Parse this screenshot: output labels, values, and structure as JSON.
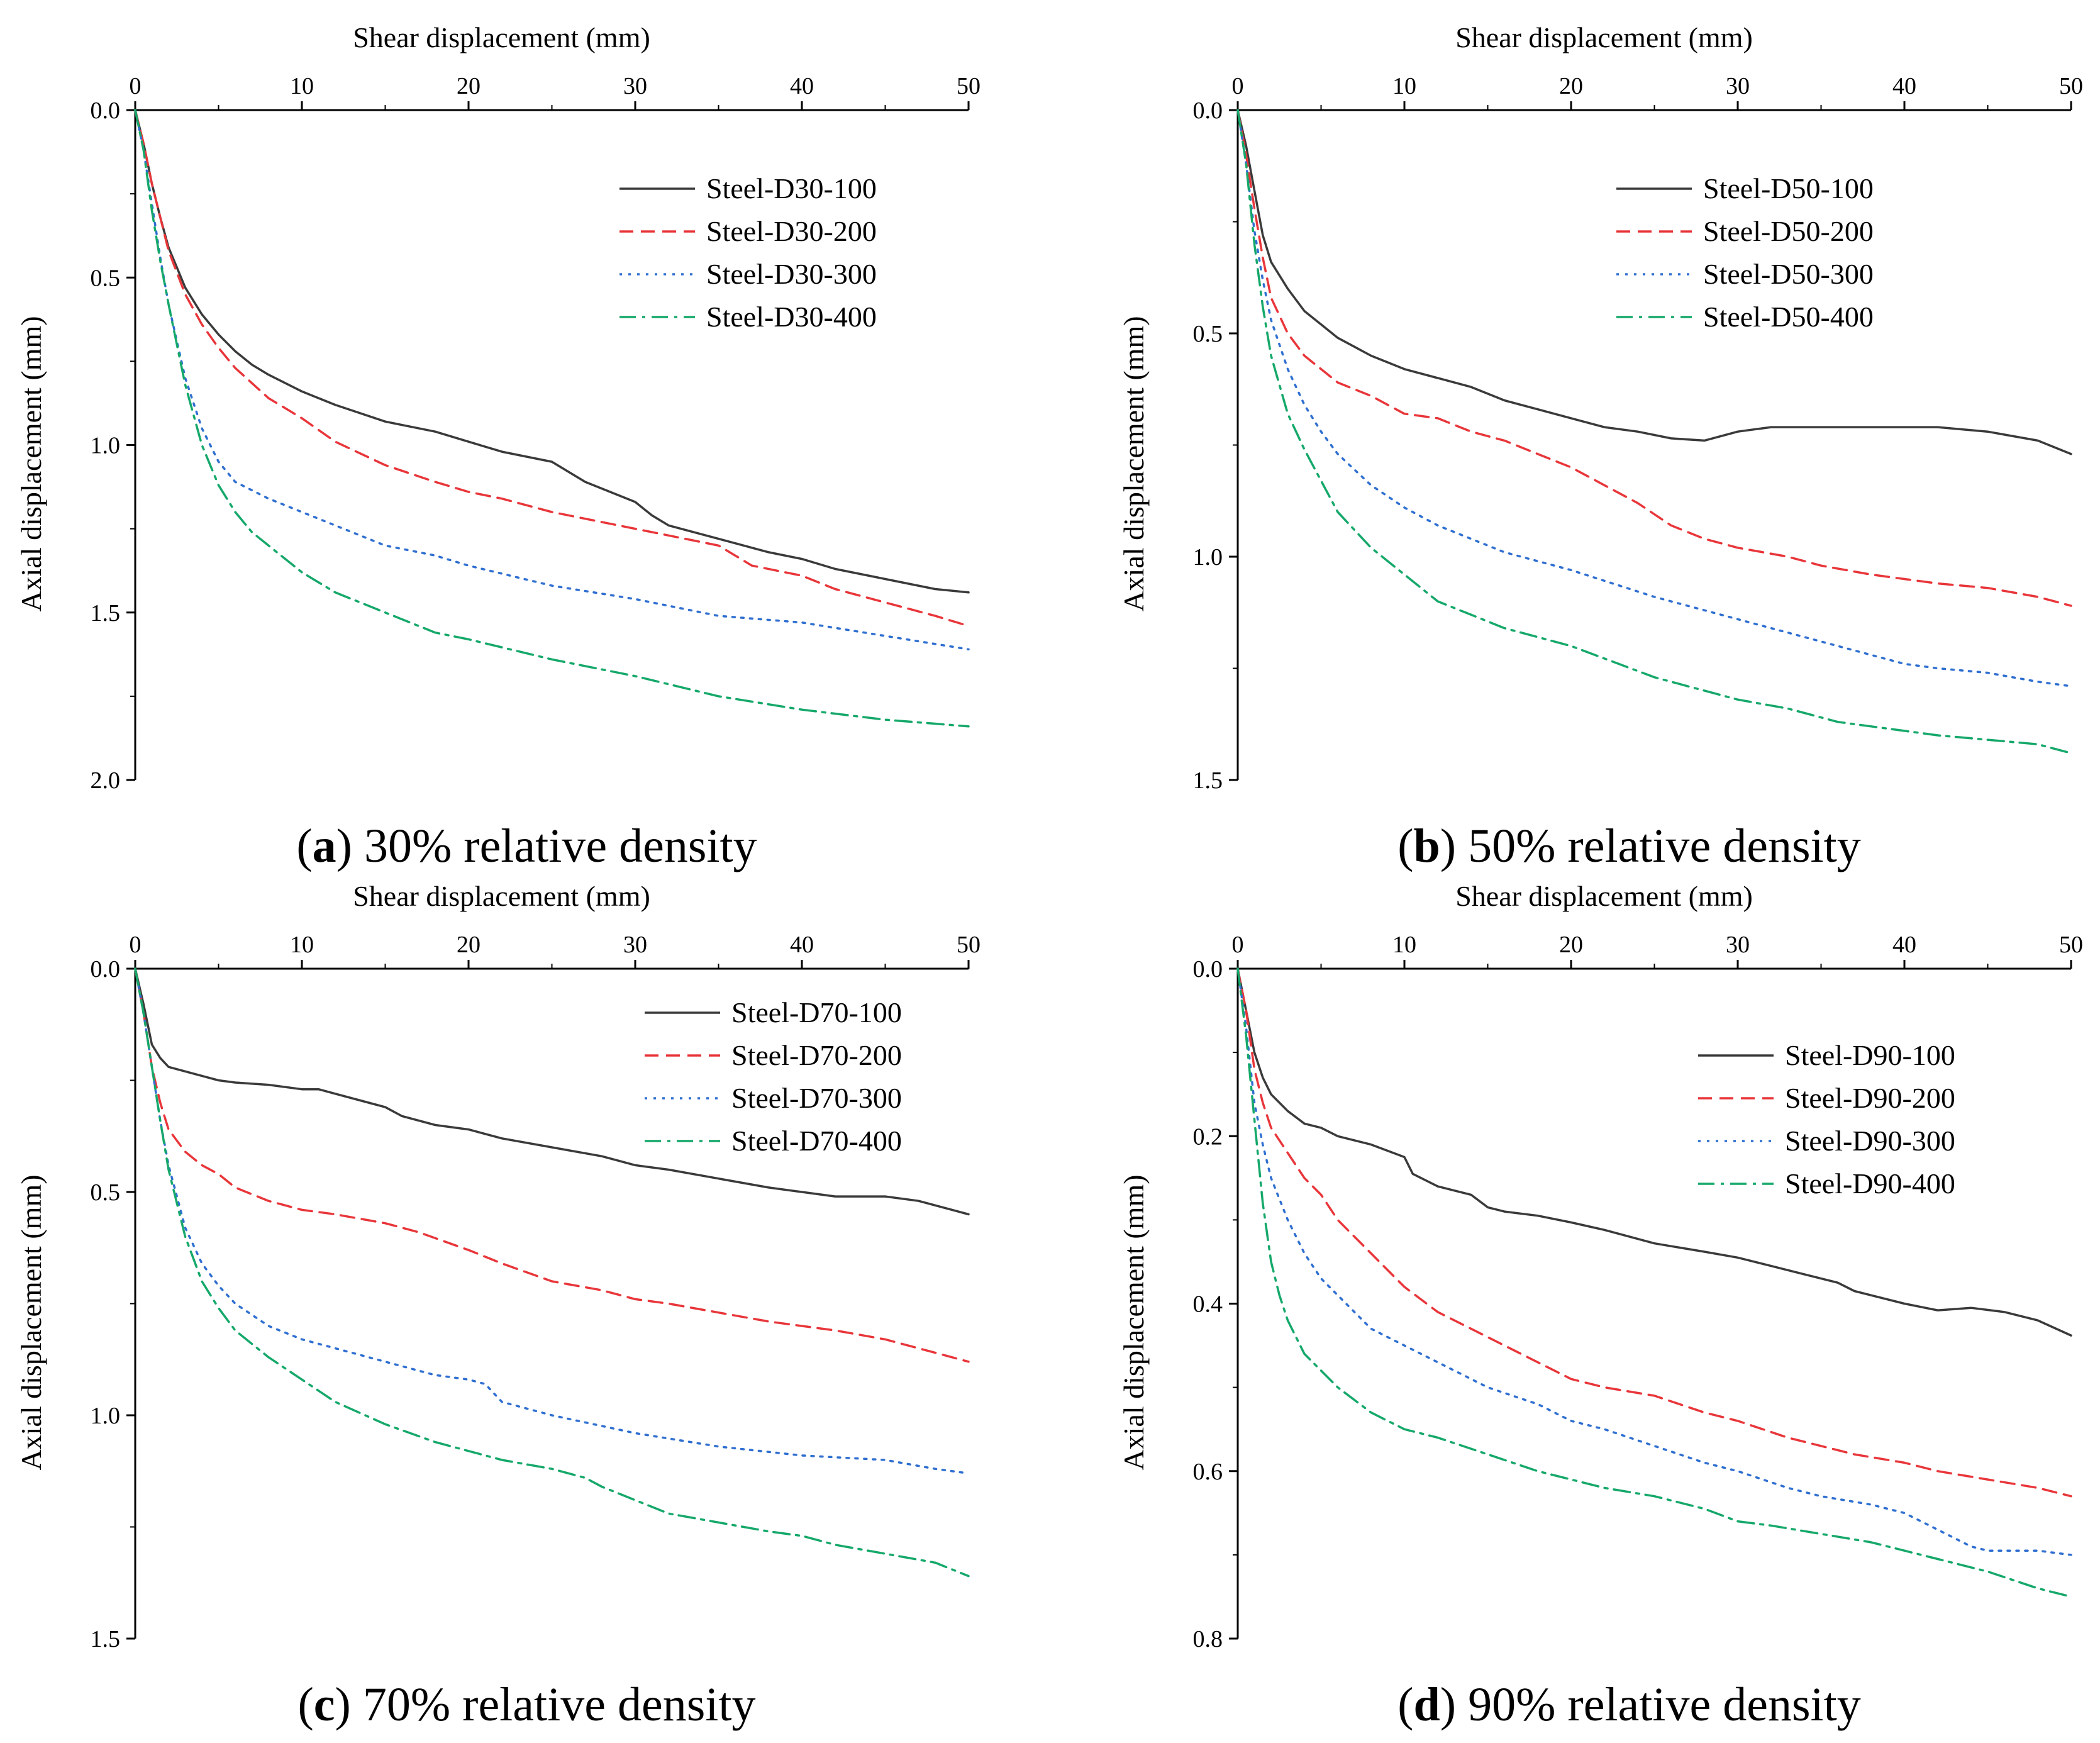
{
  "chart_data": [
    {
      "type": "line",
      "id": "a",
      "caption_letter": "a",
      "caption_text": "30% relative density",
      "xlabel": "Shear displacement (mm)",
      "ylabel": "Axial displacement (mm)",
      "xlim": [
        0,
        50
      ],
      "ylim": [
        0,
        2.0
      ],
      "y_inverted": true,
      "x_ticks": [
        "0",
        "10",
        "20",
        "30",
        "40",
        "50"
      ],
      "y_ticks": [
        "0.0",
        "0.5",
        "1.0",
        "1.5",
        "2.0"
      ],
      "legend_position": "upper-right",
      "series": [
        {
          "name": "Steel-D30-100",
          "color": "#3a3a3a",
          "style": "solid",
          "x": [
            0,
            0.5,
            1,
            1.5,
            2,
            3,
            4,
            5,
            6,
            7,
            8,
            10,
            12,
            15,
            18,
            20,
            22,
            25,
            26,
            27,
            28,
            30,
            31,
            32,
            35,
            38,
            40,
            42,
            45,
            48,
            50
          ],
          "y": [
            0,
            0.1,
            0.22,
            0.32,
            0.41,
            0.53,
            0.61,
            0.67,
            0.72,
            0.76,
            0.79,
            0.84,
            0.88,
            0.93,
            0.96,
            0.99,
            1.02,
            1.05,
            1.08,
            1.11,
            1.13,
            1.17,
            1.21,
            1.24,
            1.28,
            1.32,
            1.34,
            1.37,
            1.4,
            1.43,
            1.44
          ]
        },
        {
          "name": "Steel-D30-200",
          "color": "#e8363a",
          "style": "dashed",
          "x": [
            0,
            0.5,
            1,
            1.5,
            2,
            3,
            4,
            5,
            6,
            8,
            10,
            12,
            15,
            18,
            20,
            22,
            25,
            28,
            30,
            33,
            35,
            36,
            37,
            40,
            42,
            45,
            48,
            50
          ],
          "y": [
            0,
            0.1,
            0.22,
            0.32,
            0.42,
            0.55,
            0.64,
            0.71,
            0.77,
            0.86,
            0.92,
            0.99,
            1.06,
            1.11,
            1.14,
            1.16,
            1.2,
            1.23,
            1.25,
            1.28,
            1.3,
            1.33,
            1.36,
            1.39,
            1.43,
            1.47,
            1.51,
            1.54
          ]
        },
        {
          "name": "Steel-D30-300",
          "color": "#2f6fd0",
          "style": "dotted",
          "x": [
            0,
            0.5,
            1,
            1.5,
            2,
            3,
            4,
            5,
            6,
            8,
            10,
            12,
            15,
            18,
            20,
            25,
            30,
            35,
            40,
            45,
            50
          ],
          "y": [
            0,
            0.12,
            0.28,
            0.44,
            0.58,
            0.8,
            0.95,
            1.05,
            1.11,
            1.16,
            1.2,
            1.24,
            1.3,
            1.33,
            1.36,
            1.42,
            1.46,
            1.51,
            1.53,
            1.57,
            1.61
          ]
        },
        {
          "name": "Steel-D30-400",
          "color": "#15a86a",
          "style": "dashdot",
          "x": [
            0,
            0.5,
            1,
            1.5,
            2,
            3,
            4,
            5,
            6,
            7,
            8,
            10,
            12,
            15,
            18,
            20,
            25,
            30,
            35,
            40,
            45,
            50
          ],
          "y": [
            0,
            0.12,
            0.3,
            0.45,
            0.58,
            0.82,
            1.0,
            1.12,
            1.2,
            1.26,
            1.3,
            1.38,
            1.44,
            1.5,
            1.56,
            1.58,
            1.64,
            1.69,
            1.75,
            1.79,
            1.82,
            1.84
          ]
        }
      ]
    },
    {
      "type": "line",
      "id": "b",
      "caption_letter": "b",
      "caption_text": "50% relative density",
      "xlabel": "Shear displacement (mm)",
      "ylabel": "Axial displacement (mm)",
      "xlim": [
        0,
        50
      ],
      "ylim": [
        0,
        1.5
      ],
      "y_inverted": true,
      "x_ticks": [
        "0",
        "10",
        "20",
        "30",
        "40",
        "50"
      ],
      "y_ticks": [
        "0.0",
        "0.5",
        "1.0",
        "1.5"
      ],
      "legend_position": "upper-right",
      "series": [
        {
          "name": "Steel-D50-100",
          "color": "#3a3a3a",
          "style": "solid",
          "x": [
            0,
            0.5,
            1,
            1.5,
            2,
            3,
            4,
            5,
            6,
            8,
            10,
            12,
            14,
            16,
            18,
            20,
            22,
            24,
            26,
            28,
            30,
            32,
            35,
            38,
            40,
            42,
            45,
            48,
            50
          ],
          "y": [
            0,
            0.08,
            0.18,
            0.28,
            0.34,
            0.4,
            0.45,
            0.48,
            0.51,
            0.55,
            0.58,
            0.6,
            0.62,
            0.65,
            0.67,
            0.69,
            0.71,
            0.72,
            0.735,
            0.74,
            0.72,
            0.71,
            0.71,
            0.71,
            0.71,
            0.71,
            0.72,
            0.74,
            0.77
          ]
        },
        {
          "name": "Steel-D50-200",
          "color": "#e8363a",
          "style": "dashed",
          "x": [
            0,
            0.5,
            1,
            1.5,
            2,
            3,
            4,
            5,
            6,
            8,
            10,
            12,
            14,
            16,
            18,
            20,
            22,
            24,
            26,
            28,
            30,
            33,
            35,
            38,
            40,
            42,
            45,
            48,
            50
          ],
          "y": [
            0,
            0.1,
            0.22,
            0.33,
            0.42,
            0.5,
            0.55,
            0.58,
            0.61,
            0.64,
            0.68,
            0.69,
            0.72,
            0.74,
            0.77,
            0.8,
            0.84,
            0.88,
            0.93,
            0.96,
            0.98,
            1.0,
            1.02,
            1.04,
            1.05,
            1.06,
            1.07,
            1.09,
            1.11
          ]
        },
        {
          "name": "Steel-D50-300",
          "color": "#2f6fd0",
          "style": "dotted",
          "x": [
            0,
            0.5,
            1,
            1.5,
            2,
            3,
            4,
            5,
            6,
            8,
            10,
            12,
            14,
            16,
            18,
            20,
            25,
            30,
            35,
            38,
            40,
            42,
            45,
            48,
            50
          ],
          "y": [
            0,
            0.12,
            0.27,
            0.38,
            0.47,
            0.58,
            0.66,
            0.72,
            0.77,
            0.84,
            0.89,
            0.93,
            0.96,
            0.99,
            1.01,
            1.03,
            1.09,
            1.14,
            1.19,
            1.22,
            1.24,
            1.25,
            1.26,
            1.28,
            1.29
          ]
        },
        {
          "name": "Steel-D50-400",
          "color": "#15a86a",
          "style": "dashdot",
          "x": [
            0,
            0.5,
            1,
            1.5,
            2,
            3,
            4,
            5,
            6,
            8,
            10,
            12,
            14,
            16,
            18,
            20,
            25,
            30,
            33,
            35,
            36,
            38,
            40,
            42,
            45,
            48,
            50
          ],
          "y": [
            0,
            0.12,
            0.3,
            0.44,
            0.55,
            0.68,
            0.76,
            0.83,
            0.9,
            0.98,
            1.04,
            1.1,
            1.13,
            1.16,
            1.18,
            1.2,
            1.27,
            1.32,
            1.34,
            1.36,
            1.37,
            1.38,
            1.39,
            1.4,
            1.41,
            1.42,
            1.44
          ]
        }
      ]
    },
    {
      "type": "line",
      "id": "c",
      "caption_letter": "c",
      "caption_text": "70% relative density",
      "xlabel": "Shear displacement (mm)",
      "ylabel": "Axial displacement (mm)",
      "xlim": [
        0,
        50
      ],
      "ylim": [
        0,
        1.5
      ],
      "y_inverted": true,
      "x_ticks": [
        "0",
        "10",
        "20",
        "30",
        "40",
        "50"
      ],
      "y_ticks": [
        "0.0",
        "0.5",
        "1.0",
        "1.5"
      ],
      "legend_position": "upper-right",
      "series": [
        {
          "name": "Steel-D70-100",
          "color": "#3a3a3a",
          "style": "solid",
          "x": [
            0,
            0.5,
            1,
            1.5,
            2,
            3,
            4,
            5,
            6,
            8,
            10,
            11,
            12,
            14,
            15,
            16,
            18,
            20,
            22,
            25,
            28,
            30,
            32,
            35,
            38,
            40,
            42,
            45,
            47,
            50
          ],
          "y": [
            0,
            0.08,
            0.17,
            0.2,
            0.22,
            0.23,
            0.24,
            0.25,
            0.255,
            0.26,
            0.27,
            0.27,
            0.28,
            0.3,
            0.31,
            0.33,
            0.35,
            0.36,
            0.38,
            0.4,
            0.42,
            0.44,
            0.45,
            0.47,
            0.49,
            0.5,
            0.51,
            0.51,
            0.52,
            0.55
          ]
        },
        {
          "name": "Steel-D70-200",
          "color": "#e8363a",
          "style": "dashed",
          "x": [
            0,
            0.5,
            1,
            1.5,
            2,
            3,
            4,
            5,
            6,
            8,
            10,
            12,
            15,
            17,
            20,
            22,
            25,
            28,
            30,
            32,
            35,
            38,
            40,
            42,
            45,
            48,
            50
          ],
          "y": [
            0,
            0.1,
            0.22,
            0.3,
            0.36,
            0.41,
            0.44,
            0.46,
            0.49,
            0.52,
            0.54,
            0.55,
            0.57,
            0.59,
            0.63,
            0.66,
            0.7,
            0.72,
            0.74,
            0.75,
            0.77,
            0.79,
            0.8,
            0.81,
            0.83,
            0.86,
            0.88
          ]
        },
        {
          "name": "Steel-D70-300",
          "color": "#2f6fd0",
          "style": "dotted",
          "x": [
            0,
            0.5,
            1,
            1.5,
            2,
            3,
            4,
            5,
            6,
            8,
            10,
            12,
            15,
            18,
            20,
            21,
            22,
            25,
            30,
            35,
            40,
            45,
            48,
            50
          ],
          "y": [
            0,
            0.1,
            0.22,
            0.34,
            0.44,
            0.58,
            0.66,
            0.71,
            0.75,
            0.8,
            0.83,
            0.85,
            0.88,
            0.91,
            0.92,
            0.93,
            0.97,
            1.0,
            1.04,
            1.07,
            1.09,
            1.1,
            1.12,
            1.13
          ]
        },
        {
          "name": "Steel-D70-400",
          "color": "#15a86a",
          "style": "dashdot",
          "x": [
            0,
            0.5,
            1,
            1.5,
            2,
            3,
            4,
            5,
            6,
            8,
            10,
            12,
            15,
            18,
            20,
            22,
            25,
            27,
            28,
            30,
            32,
            35,
            38,
            40,
            42,
            45,
            48,
            50
          ],
          "y": [
            0,
            0.1,
            0.22,
            0.34,
            0.45,
            0.6,
            0.7,
            0.76,
            0.81,
            0.87,
            0.92,
            0.97,
            1.02,
            1.06,
            1.08,
            1.1,
            1.12,
            1.14,
            1.16,
            1.19,
            1.22,
            1.24,
            1.26,
            1.27,
            1.29,
            1.31,
            1.33,
            1.36
          ]
        }
      ]
    },
    {
      "type": "line",
      "id": "d",
      "caption_letter": "d",
      "caption_text": "90% relative density",
      "xlabel": "Shear displacement (mm)",
      "ylabel": "Axial displacement (mm)",
      "xlim": [
        0,
        50
      ],
      "ylim": [
        0,
        0.8
      ],
      "y_inverted": true,
      "x_ticks": [
        "0",
        "10",
        "20",
        "30",
        "40",
        "50"
      ],
      "y_ticks": [
        "0.0",
        "0.2",
        "0.4",
        "0.6",
        "0.8"
      ],
      "legend_position": "right",
      "series": [
        {
          "name": "Steel-D90-100",
          "color": "#3a3a3a",
          "style": "solid",
          "x": [
            0,
            0.5,
            1,
            1.5,
            2,
            3,
            4,
            5,
            6,
            8,
            10,
            10.5,
            12,
            14,
            15,
            16,
            18,
            20,
            22,
            25,
            28,
            30,
            32,
            34,
            36,
            37,
            38,
            40,
            42,
            44,
            46,
            48,
            50
          ],
          "y": [
            0,
            0.05,
            0.1,
            0.13,
            0.15,
            0.17,
            0.185,
            0.19,
            0.2,
            0.21,
            0.225,
            0.245,
            0.26,
            0.27,
            0.285,
            0.29,
            0.295,
            0.303,
            0.312,
            0.328,
            0.338,
            0.345,
            0.355,
            0.365,
            0.375,
            0.385,
            0.39,
            0.4,
            0.408,
            0.405,
            0.41,
            0.42,
            0.438
          ]
        },
        {
          "name": "Steel-D90-200",
          "color": "#e8363a",
          "style": "dashed",
          "x": [
            0,
            0.5,
            1,
            1.5,
            2,
            3,
            4,
            5,
            6,
            8,
            10,
            12,
            15,
            18,
            20,
            22,
            25,
            28,
            30,
            33,
            35,
            37,
            40,
            42,
            45,
            48,
            50
          ],
          "y": [
            0,
            0.05,
            0.12,
            0.16,
            0.19,
            0.22,
            0.25,
            0.27,
            0.3,
            0.34,
            0.38,
            0.41,
            0.44,
            0.47,
            0.49,
            0.5,
            0.51,
            0.53,
            0.54,
            0.56,
            0.57,
            0.58,
            0.59,
            0.6,
            0.61,
            0.62,
            0.63
          ]
        },
        {
          "name": "Steel-D90-300",
          "color": "#2f6fd0",
          "style": "dotted",
          "x": [
            0,
            0.5,
            1,
            1.5,
            2,
            3,
            4,
            5,
            6,
            8,
            10,
            12,
            15,
            18,
            20,
            22,
            25,
            28,
            30,
            33,
            35,
            38,
            40,
            42,
            44,
            45,
            48,
            50
          ],
          "y": [
            0,
            0.07,
            0.16,
            0.21,
            0.25,
            0.3,
            0.34,
            0.37,
            0.39,
            0.43,
            0.45,
            0.47,
            0.5,
            0.52,
            0.54,
            0.55,
            0.57,
            0.59,
            0.6,
            0.62,
            0.63,
            0.64,
            0.65,
            0.67,
            0.69,
            0.695,
            0.695,
            0.7
          ]
        },
        {
          "name": "Steel-D90-400",
          "color": "#15a86a",
          "style": "dashdot",
          "x": [
            0,
            0.5,
            1,
            1.5,
            2,
            2.5,
            3,
            4,
            5,
            6,
            8,
            10,
            12,
            15,
            18,
            20,
            22,
            25,
            28,
            30,
            32,
            35,
            38,
            40,
            42,
            45,
            48,
            50
          ],
          "y": [
            0,
            0.08,
            0.18,
            0.28,
            0.35,
            0.39,
            0.42,
            0.46,
            0.48,
            0.5,
            0.53,
            0.55,
            0.56,
            0.58,
            0.6,
            0.61,
            0.62,
            0.63,
            0.645,
            0.66,
            0.665,
            0.675,
            0.685,
            0.695,
            0.705,
            0.72,
            0.74,
            0.75
          ]
        }
      ]
    }
  ]
}
